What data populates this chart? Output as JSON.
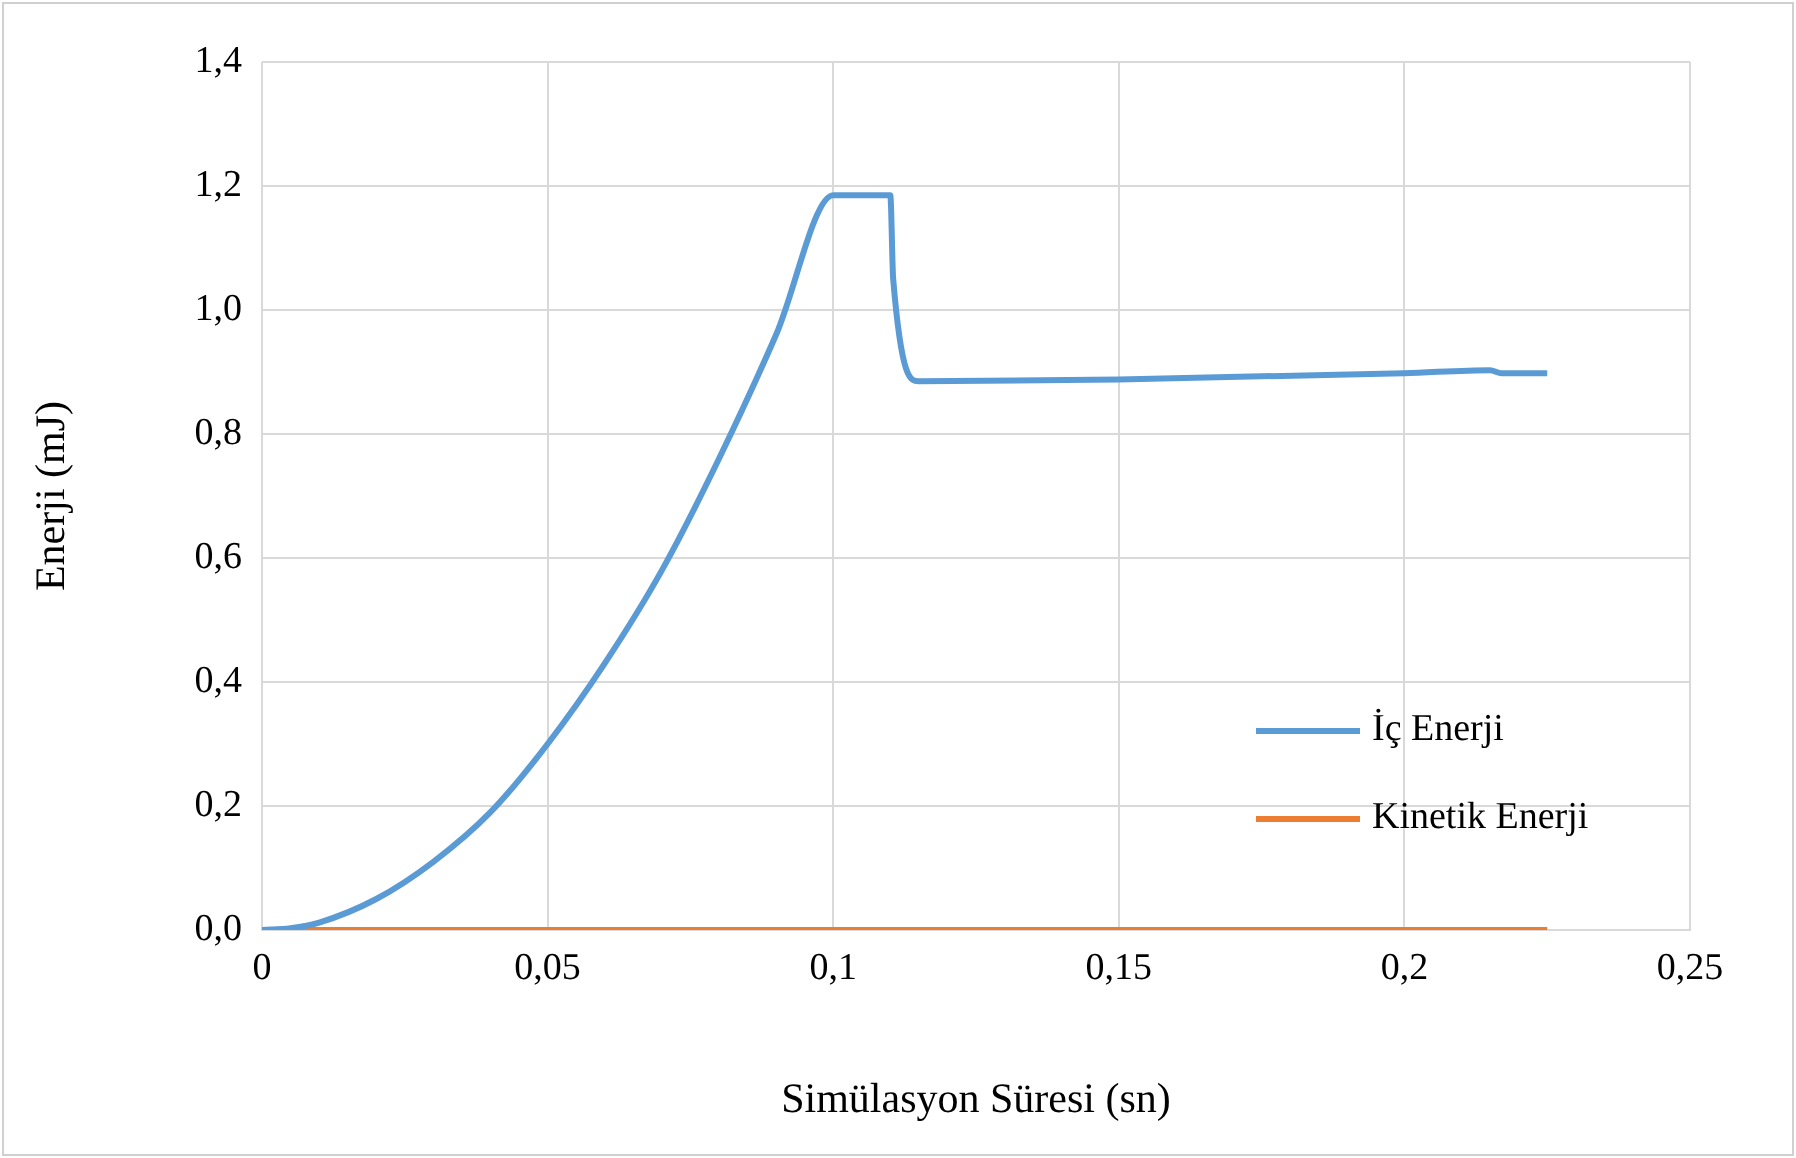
{
  "chart_data": {
    "type": "line",
    "xlabel": "Simülasyon Süresi (sn)",
    "ylabel": "Enerji (mJ)",
    "xlim": [
      0,
      0.25
    ],
    "xticks": [
      0,
      {
        "value": 0.05,
        "label": "0,05"
      },
      {
        "value": 0.1,
        "label": "0,1"
      },
      {
        "value": 0.15,
        "label": "0,15"
      },
      {
        "value": 0.2,
        "label": "0,2"
      },
      {
        "value": 0.25,
        "label": "0,25"
      }
    ],
    "ylim": [
      0,
      1.4
    ],
    "yticks": [
      {
        "value": 0,
        "label": "0,0"
      },
      {
        "value": 0.2,
        "label": "0,2"
      },
      {
        "value": 0.4,
        "label": "0,4"
      },
      {
        "value": 0.6,
        "label": "0,6"
      },
      {
        "value": 0.8,
        "label": "0,8"
      },
      {
        "value": 1,
        "label": "1,0"
      },
      {
        "value": 1.2,
        "label": "1,2"
      },
      {
        "value": 1.4,
        "label": "1,4"
      }
    ],
    "grid": true,
    "legend": "right",
    "marker": "none",
    "line_style": "solid",
    "series": [
      {
        "name": "İç Enerji",
        "color": "#5b9bd5",
        "x": [
          0,
          0.005,
          0.01,
          0.02,
          0.03,
          0.04,
          0.05,
          0.06,
          0.07,
          0.08,
          0.09,
          0.1,
          0.11,
          0.1105,
          0.115,
          0.15,
          0.2,
          0.215,
          0.217,
          0.225
        ],
        "values": [
          0,
          0.003,
          0.012,
          0.05,
          0.11,
          0.19,
          0.3,
          0.43,
          0.58,
          0.76,
          0.96,
          1.185,
          1.185,
          1.05,
          0.885,
          0.888,
          0.898,
          0.903,
          0.898,
          0.898
        ]
      },
      {
        "name": "Kinetik Enerji",
        "color": "#ed7d31",
        "x": [
          0,
          0.225
        ],
        "values": [
          0,
          0
        ]
      }
    ]
  }
}
